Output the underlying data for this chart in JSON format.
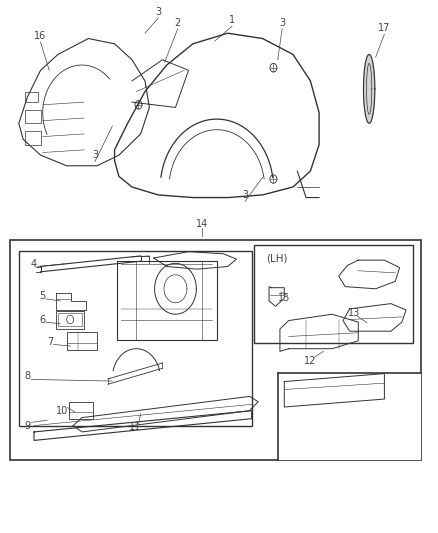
{
  "bg_color": "#ffffff",
  "line_color": "#333333",
  "label_color": "#444444",
  "label_fontsize": 7,
  "fig_width": 4.38,
  "fig_height": 5.33,
  "dpi": 100
}
